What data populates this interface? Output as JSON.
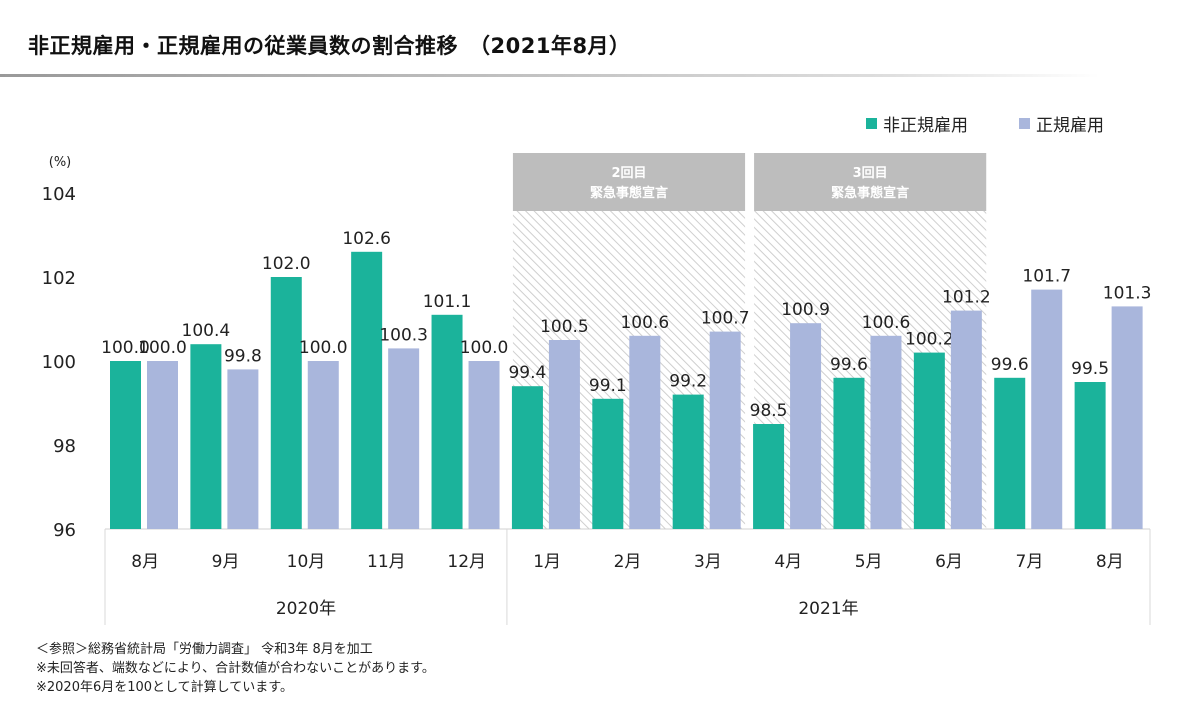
{
  "title": "非正規雇用・正規雇用の従業員数の割合推移　（2021年8月）",
  "notes": [
    "＜参照＞総務省統計局「労働力調査」 令和3年 8月を加工",
    "※未回答者、端数などにより、合計数値が合わないことがあります。",
    "※2020年6月を100として計算しています。"
  ],
  "chart_data": {
    "type": "bar",
    "ylabel": "(%)",
    "ylim": [
      96,
      104
    ],
    "yticks": [
      96,
      98,
      100,
      102,
      104
    ],
    "grid": false,
    "legend_position": "top-right",
    "categories": [
      "8月",
      "9月",
      "10月",
      "11月",
      "12月",
      "1月",
      "2月",
      "3月",
      "4月",
      "5月",
      "6月",
      "7月",
      "8月"
    ],
    "year_groups": [
      {
        "label": "2020年",
        "from": 0,
        "to": 4
      },
      {
        "label": "2021年",
        "from": 5,
        "to": 12
      }
    ],
    "series": [
      {
        "name": "非正規雇用",
        "color": "#1bb39b",
        "values": [
          100.0,
          100.4,
          102.0,
          102.6,
          101.1,
          99.4,
          99.1,
          99.2,
          98.5,
          99.6,
          100.2,
          99.6,
          99.5
        ]
      },
      {
        "name": "正規雇用",
        "color": "#a9b6dc",
        "values": [
          100.0,
          99.8,
          100.0,
          100.3,
          100.0,
          100.5,
          100.6,
          100.7,
          100.9,
          100.6,
          101.2,
          101.7,
          101.3
        ]
      }
    ],
    "annotations": [
      {
        "line1": "2回目",
        "line2": "緊急事態宣言",
        "from": 5,
        "to": 7
      },
      {
        "line1": "3回目",
        "line2": "緊急事態宣言",
        "from": 8,
        "to": 10
      }
    ]
  }
}
